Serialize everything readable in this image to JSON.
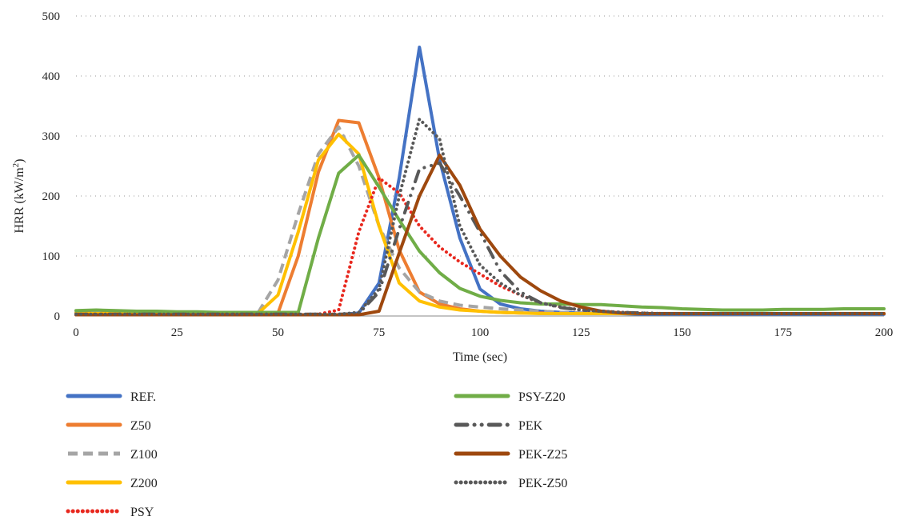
{
  "chart_data": {
    "type": "line",
    "title": "",
    "xlabel": "Time (sec)",
    "ylabel_main": "HRR (kW/m",
    "ylabel_sup": "2",
    "ylabel_end": ")",
    "xlim": [
      0,
      200
    ],
    "ylim": [
      0,
      500
    ],
    "xticks": [
      "0",
      "25",
      "50",
      "75",
      "100",
      "125",
      "150",
      "175",
      "200"
    ],
    "yticks": [
      "0",
      "100",
      "200",
      "300",
      "400",
      "500"
    ],
    "grid": "horizontal dotted",
    "legend_position": "bottom",
    "x": [
      0,
      5,
      10,
      15,
      20,
      25,
      30,
      35,
      40,
      45,
      50,
      55,
      60,
      65,
      70,
      75,
      80,
      85,
      90,
      95,
      100,
      105,
      110,
      115,
      120,
      125,
      130,
      135,
      140,
      145,
      150,
      155,
      160,
      165,
      170,
      175,
      180,
      185,
      190,
      195,
      200
    ],
    "series": [
      {
        "name": "REF.",
        "color": "#4472c4",
        "dash": "solid",
        "values": [
          5,
          5,
          5,
          4,
          4,
          4,
          3,
          3,
          3,
          3,
          3,
          2,
          2,
          2,
          5,
          55,
          230,
          448,
          260,
          130,
          45,
          20,
          12,
          8,
          6,
          5,
          4,
          4,
          3,
          3,
          3,
          3,
          3,
          3,
          3,
          3,
          3,
          3,
          3,
          3,
          3
        ]
      },
      {
        "name": "Z50",
        "color": "#ed7d31",
        "dash": "solid",
        "values": [
          5,
          5,
          5,
          4,
          4,
          4,
          4,
          4,
          4,
          4,
          5,
          100,
          240,
          326,
          322,
          230,
          110,
          40,
          20,
          12,
          8,
          6,
          5,
          5,
          4,
          4,
          4,
          4,
          4,
          4,
          4,
          4,
          4,
          4,
          4,
          4,
          4,
          4,
          4,
          4,
          4
        ]
      },
      {
        "name": "Z100",
        "color": "#a5a5a5",
        "dash": "dash",
        "values": [
          8,
          8,
          7,
          7,
          6,
          6,
          5,
          5,
          5,
          5,
          60,
          170,
          270,
          315,
          250,
          150,
          80,
          40,
          25,
          18,
          15,
          12,
          10,
          8,
          6,
          5,
          5,
          4,
          4,
          4,
          4,
          4,
          4,
          4,
          4,
          4,
          4,
          4,
          4,
          4,
          4
        ]
      },
      {
        "name": "Z200",
        "color": "#ffc000",
        "dash": "solid",
        "values": [
          4,
          4,
          4,
          4,
          4,
          4,
          4,
          4,
          4,
          4,
          35,
          140,
          260,
          303,
          270,
          150,
          55,
          25,
          15,
          10,
          8,
          6,
          5,
          4,
          4,
          4,
          4,
          4,
          4,
          4,
          4,
          4,
          4,
          4,
          4,
          4,
          4,
          4,
          4,
          4,
          4
        ]
      },
      {
        "name": "PSY",
        "color": "#e8281e",
        "dash": "dot",
        "values": [
          2,
          2,
          2,
          2,
          2,
          2,
          2,
          2,
          2,
          2,
          2,
          2,
          3,
          10,
          140,
          230,
          205,
          150,
          115,
          90,
          70,
          50,
          35,
          22,
          15,
          10,
          8,
          6,
          5,
          4,
          4,
          4,
          4,
          4,
          4,
          4,
          4,
          4,
          4,
          4,
          4
        ]
      },
      {
        "name": "PSY-Z20",
        "color": "#70ad47",
        "dash": "solid",
        "values": [
          9,
          10,
          9,
          8,
          8,
          7,
          7,
          6,
          6,
          6,
          6,
          6,
          130,
          238,
          268,
          215,
          160,
          108,
          72,
          46,
          33,
          26,
          22,
          20,
          20,
          19,
          19,
          17,
          15,
          14,
          12,
          11,
          10,
          10,
          10,
          11,
          11,
          11,
          12,
          12,
          12
        ]
      },
      {
        "name": "PEK",
        "color": "#595959",
        "dash": "dashdot",
        "values": [
          3,
          3,
          3,
          3,
          3,
          3,
          3,
          3,
          3,
          3,
          3,
          3,
          3,
          3,
          4,
          40,
          145,
          245,
          255,
          200,
          140,
          75,
          40,
          22,
          14,
          10,
          8,
          6,
          5,
          4,
          4,
          4,
          4,
          4,
          4,
          4,
          4,
          4,
          4,
          4,
          4
        ]
      },
      {
        "name": "PEK-Z25",
        "color": "#9e480e",
        "dash": "solid",
        "values": [
          2,
          2,
          2,
          2,
          2,
          2,
          2,
          2,
          2,
          2,
          2,
          2,
          2,
          2,
          2,
          8,
          105,
          200,
          268,
          218,
          145,
          100,
          65,
          42,
          25,
          15,
          8,
          5,
          4,
          4,
          4,
          4,
          4,
          4,
          4,
          4,
          4,
          4,
          4,
          4,
          4
        ]
      },
      {
        "name": "PEK-Z50",
        "color": "#595959",
        "dash": "dot",
        "values": [
          3,
          3,
          3,
          3,
          3,
          3,
          3,
          3,
          3,
          3,
          3,
          3,
          3,
          3,
          6,
          45,
          200,
          328,
          295,
          150,
          85,
          55,
          35,
          22,
          15,
          10,
          8,
          6,
          5,
          4,
          4,
          4,
          4,
          4,
          4,
          4,
          4,
          4,
          4,
          4,
          4
        ]
      }
    ]
  }
}
